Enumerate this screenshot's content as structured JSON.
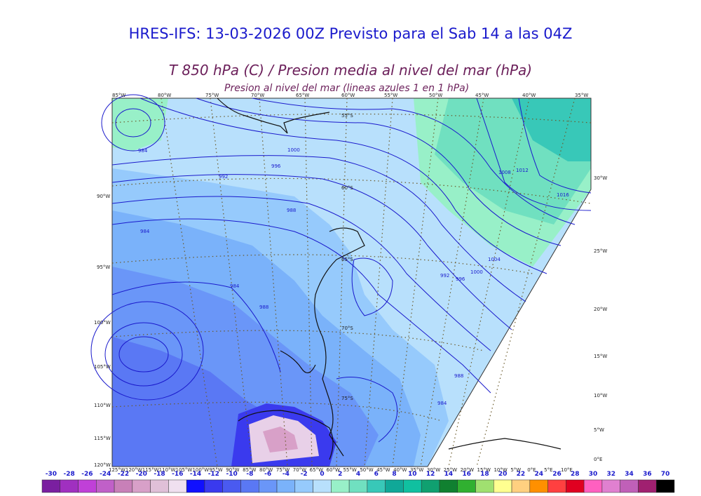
{
  "header": {
    "title": "HRES-IFS: 13-03-2026 00Z Previsto para el Sab 14 a las 04Z",
    "subtitle": "T 850 hPa (C) / Presion media al nivel del mar (hPa)",
    "subtitle2": "Presion al nivel del mar (lineas azules 1 en 1 hPa)"
  },
  "map": {
    "top_longitudes": [
      "85°W",
      "80°W",
      "75°W",
      "70°W",
      "65°W",
      "60°W",
      "55°W",
      "50°W",
      "45°W",
      "40°W",
      "35°W"
    ],
    "left_longitudes": [
      "90°W",
      "95°W",
      "100°W",
      "105°W",
      "110°W",
      "115°W",
      "120°W"
    ],
    "right_longitudes": [
      "30°W",
      "25°W",
      "20°W",
      "15°W",
      "10°W",
      "5°W",
      "0°E"
    ],
    "bottom_labels": [
      "125°W",
      "120°W",
      "115°W",
      "110°W",
      "105°W",
      "100°W",
      "95°W",
      "90°W",
      "85°W",
      "80°W",
      "75°W",
      "70°W",
      "65°W",
      "60°W",
      "55°W",
      "50°W",
      "45°W",
      "40°W",
      "35°W",
      "30°W",
      "25°W",
      "20°W",
      "15°W",
      "10°W",
      "5°W",
      "0°E",
      "5°E",
      "10°E"
    ],
    "latitude_labels": [
      "55°S",
      "60°S",
      "65°S",
      "70°S",
      "75°S"
    ],
    "isobar_labels": [
      "984",
      "1000",
      "996",
      "992",
      "988",
      "984",
      "984",
      "988",
      "1008",
      "1012",
      "1016",
      "1004",
      "1000",
      "996",
      "992",
      "988",
      "984"
    ]
  },
  "colorbar": {
    "values": [
      "-30",
      "-28",
      "-26",
      "-24",
      "-22",
      "-20",
      "-18",
      "-16",
      "-14",
      "-12",
      "-10",
      "-8",
      "-6",
      "-4",
      "-2",
      "0",
      "2",
      "4",
      "6",
      "8",
      "10",
      "12",
      "14",
      "16",
      "18",
      "20",
      "22",
      "24",
      "26",
      "28",
      "30",
      "32",
      "34",
      "36",
      "70"
    ],
    "colors": [
      "#7a1fa0",
      "#a030c0",
      "#c040d8",
      "#c060c8",
      "#c880b8",
      "#d8a0c8",
      "#e0c0d8",
      "#f0e0f0",
      "#1010ff",
      "#3a3aee",
      "#4a5af0",
      "#5a78f4",
      "#6a96f8",
      "#7ab2fa",
      "#96cafc",
      "#b8e0fc",
      "#98f0c8",
      "#70e0c0",
      "#38c8b8",
      "#10a898",
      "#10c0a0",
      "#10a070",
      "#108030",
      "#30b030",
      "#a0e070",
      "#ffff90",
      "#ffd080",
      "#ff9000",
      "#ff4040",
      "#e00020",
      "#ff60c0",
      "#e080d0",
      "#c060b8",
      "#a02070",
      "#000000"
    ]
  }
}
